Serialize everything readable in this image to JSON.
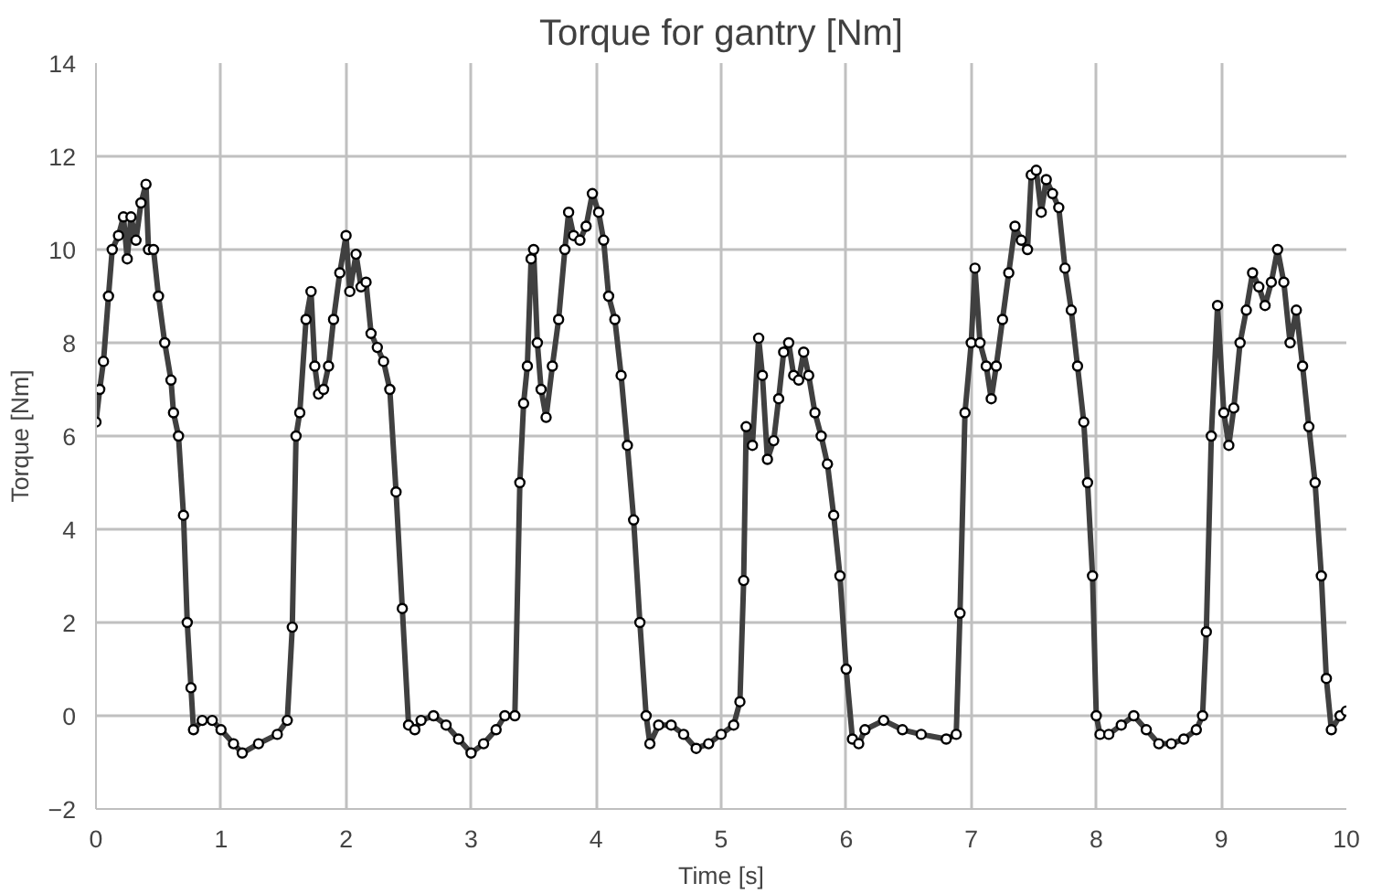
{
  "chart_data": {
    "type": "line",
    "title": "Torque for gantry [Nm]",
    "xlabel": "Time [s]",
    "ylabel": "Torque [Nm]",
    "xlim": [
      0,
      10
    ],
    "xticks": [
      0,
      1,
      2,
      3,
      4,
      5,
      6,
      7,
      8,
      9,
      10
    ],
    "ylim": [
      -2,
      14
    ],
    "yticks": [
      -2,
      0,
      2,
      4,
      6,
      8,
      10,
      12,
      14
    ],
    "grid": true,
    "marker": "circle",
    "line_style": "solid",
    "series": [
      {
        "color": "#404040",
        "x": [
          0,
          0.03,
          0.06,
          0.1,
          0.13,
          0.18,
          0.22,
          0.25,
          0.28,
          0.32,
          0.36,
          0.4,
          0.42,
          0.46,
          0.5,
          0.55,
          0.6,
          0.62,
          0.66,
          0.7,
          0.73,
          0.76,
          0.78,
          0.85,
          0.93,
          1.0,
          1.1,
          1.17,
          1.3,
          1.45,
          1.53,
          1.57,
          1.6,
          1.63,
          1.68,
          1.72,
          1.75,
          1.78,
          1.82,
          1.86,
          1.9,
          1.95,
          2.0,
          2.03,
          2.08,
          2.12,
          2.16,
          2.2,
          2.25,
          2.3,
          2.35,
          2.4,
          2.45,
          2.5,
          2.55,
          2.6,
          2.7,
          2.8,
          2.9,
          3.0,
          3.1,
          3.2,
          3.27,
          3.35,
          3.39,
          3.42,
          3.45,
          3.48,
          3.5,
          3.53,
          3.56,
          3.6,
          3.65,
          3.7,
          3.75,
          3.78,
          3.82,
          3.87,
          3.92,
          3.97,
          4.02,
          4.06,
          4.1,
          4.15,
          4.2,
          4.25,
          4.3,
          4.35,
          4.4,
          4.43,
          4.5,
          4.6,
          4.7,
          4.8,
          4.9,
          5.0,
          5.1,
          5.15,
          5.18,
          5.2,
          5.25,
          5.3,
          5.33,
          5.37,
          5.42,
          5.46,
          5.5,
          5.54,
          5.58,
          5.62,
          5.66,
          5.7,
          5.75,
          5.8,
          5.85,
          5.9,
          5.95,
          6.0,
          6.05,
          6.1,
          6.15,
          6.3,
          6.45,
          6.6,
          6.8,
          6.88,
          6.91,
          6.95,
          7.0,
          7.03,
          7.07,
          7.12,
          7.16,
          7.2,
          7.25,
          7.3,
          7.35,
          7.4,
          7.45,
          7.48,
          7.52,
          7.56,
          7.6,
          7.65,
          7.7,
          7.75,
          7.8,
          7.85,
          7.9,
          7.93,
          7.97,
          8.0,
          8.03,
          8.1,
          8.2,
          8.3,
          8.4,
          8.5,
          8.6,
          8.7,
          8.8,
          8.85,
          8.88,
          8.92,
          8.97,
          9.02,
          9.06,
          9.1,
          9.15,
          9.2,
          9.25,
          9.3,
          9.35,
          9.4,
          9.45,
          9.5,
          9.55,
          9.6,
          9.65,
          9.7,
          9.75,
          9.8,
          9.84,
          9.88,
          9.95,
          10.0
        ],
        "values": [
          6.3,
          7.0,
          7.6,
          9.0,
          10.0,
          10.3,
          10.7,
          9.8,
          10.7,
          10.2,
          11.0,
          11.4,
          10.0,
          10.0,
          9.0,
          8.0,
          7.2,
          6.5,
          6.0,
          4.3,
          2.0,
          0.6,
          -0.3,
          -0.1,
          -0.1,
          -0.3,
          -0.6,
          -0.8,
          -0.6,
          -0.4,
          -0.1,
          1.9,
          6.0,
          6.5,
          8.5,
          9.1,
          7.5,
          6.9,
          7.0,
          7.5,
          8.5,
          9.5,
          10.3,
          9.1,
          9.9,
          9.2,
          9.3,
          8.2,
          7.9,
          7.6,
          7.0,
          4.8,
          2.3,
          -0.2,
          -0.3,
          -0.1,
          0.0,
          -0.2,
          -0.5,
          -0.8,
          -0.6,
          -0.3,
          0.0,
          0.0,
          5.0,
          6.7,
          7.5,
          9.8,
          10.0,
          8.0,
          7.0,
          6.4,
          7.5,
          8.5,
          10.0,
          10.8,
          10.3,
          10.2,
          10.5,
          11.2,
          10.8,
          10.2,
          9.0,
          8.5,
          7.3,
          5.8,
          4.2,
          2.0,
          0.0,
          -0.6,
          -0.2,
          -0.2,
          -0.4,
          -0.7,
          -0.6,
          -0.4,
          -0.2,
          0.3,
          2.9,
          6.2,
          5.8,
          8.1,
          7.3,
          5.5,
          5.9,
          6.8,
          7.8,
          8.0,
          7.3,
          7.2,
          7.8,
          7.3,
          6.5,
          6.0,
          5.4,
          4.3,
          3.0,
          1.0,
          -0.5,
          -0.6,
          -0.3,
          -0.1,
          -0.3,
          -0.4,
          -0.5,
          -0.4,
          2.2,
          6.5,
          8.0,
          9.6,
          8.0,
          7.5,
          6.8,
          7.5,
          8.5,
          9.5,
          10.5,
          10.2,
          10.0,
          11.6,
          11.7,
          10.8,
          11.5,
          11.2,
          10.9,
          9.6,
          8.7,
          7.5,
          6.3,
          5.0,
          3.0,
          0.0,
          -0.4,
          -0.4,
          -0.2,
          0.0,
          -0.3,
          -0.6,
          -0.6,
          -0.5,
          -0.3,
          0.0,
          1.8,
          6.0,
          8.8,
          6.5,
          5.8,
          6.6,
          8.0,
          8.7,
          9.5,
          9.2,
          8.8,
          9.3,
          10.0,
          9.3,
          8.0,
          8.7,
          7.5,
          6.2,
          5.0,
          3.0,
          0.8,
          -0.3,
          0.0,
          0.1
        ]
      }
    ]
  }
}
